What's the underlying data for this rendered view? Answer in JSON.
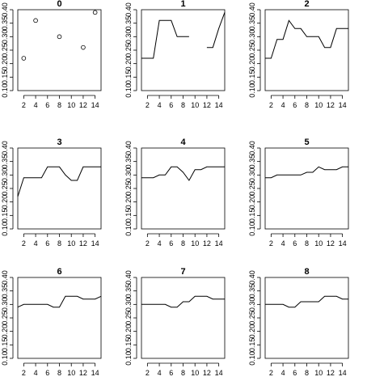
{
  "chart_data": [
    {
      "type": "scatter",
      "title": "0",
      "x": [
        2,
        4,
        6,
        8,
        10,
        12,
        14
      ],
      "y": [
        0.22,
        0.36,
        null,
        0.3,
        null,
        0.26,
        0.39
      ],
      "xlim": [
        1,
        15
      ],
      "ylim": [
        0.1,
        0.4
      ],
      "xticks": [
        2,
        4,
        6,
        8,
        10,
        12,
        14
      ],
      "yticks": [
        0.1,
        0.15,
        0.2,
        0.25,
        0.3,
        0.35,
        0.4
      ],
      "ytick_labels": [
        "0.10",
        "0.15",
        "0.20",
        "0.25",
        "0.30",
        "0.35",
        "0.40"
      ]
    },
    {
      "type": "line",
      "title": "1",
      "x": [
        1,
        2,
        3,
        4,
        5,
        6,
        7,
        8,
        9,
        10,
        11,
        12,
        13,
        14,
        15
      ],
      "y": [
        0.22,
        0.22,
        0.22,
        0.36,
        0.36,
        0.36,
        0.3,
        0.3,
        0.3,
        null,
        null,
        0.26,
        0.26,
        0.33,
        0.39
      ],
      "xlim": [
        1,
        15
      ],
      "ylim": [
        0.1,
        0.4
      ],
      "xticks": [
        2,
        4,
        6,
        8,
        10,
        12,
        14
      ],
      "yticks": [
        0.1,
        0.15,
        0.2,
        0.25,
        0.3,
        0.35,
        0.4
      ],
      "ytick_labels": [
        "0.10",
        "0.15",
        "0.20",
        "0.25",
        "0.30",
        "0.35",
        "0.40"
      ]
    },
    {
      "type": "line",
      "title": "2",
      "x": [
        1,
        2,
        3,
        4,
        5,
        6,
        7,
        8,
        9,
        10,
        11,
        12,
        13,
        14,
        15
      ],
      "y": [
        0.22,
        0.22,
        0.29,
        0.29,
        0.36,
        0.33,
        0.33,
        0.3,
        0.3,
        0.3,
        0.26,
        0.26,
        0.33,
        0.33,
        0.33
      ],
      "xlim": [
        1,
        15
      ],
      "ylim": [
        0.1,
        0.4
      ],
      "xticks": [
        2,
        4,
        6,
        8,
        10,
        12,
        14
      ],
      "yticks": [
        0.1,
        0.15,
        0.2,
        0.25,
        0.3,
        0.35,
        0.4
      ],
      "ytick_labels": [
        "0.10",
        "0.15",
        "0.20",
        "0.25",
        "0.30",
        "0.35",
        "0.40"
      ]
    },
    {
      "type": "line",
      "title": "3",
      "x": [
        1,
        2,
        3,
        4,
        5,
        6,
        7,
        8,
        9,
        10,
        11,
        12,
        13,
        14,
        15
      ],
      "y": [
        0.22,
        0.29,
        0.29,
        0.29,
        0.29,
        0.33,
        0.33,
        0.33,
        0.3,
        0.28,
        0.28,
        0.33,
        0.33,
        0.33,
        0.33
      ],
      "xlim": [
        1,
        15
      ],
      "ylim": [
        0.1,
        0.4
      ],
      "xticks": [
        2,
        4,
        6,
        8,
        10,
        12,
        14
      ],
      "yticks": [
        0.1,
        0.15,
        0.2,
        0.25,
        0.3,
        0.35,
        0.4
      ],
      "ytick_labels": [
        "0.10",
        "0.15",
        "0.20",
        "0.25",
        "0.30",
        "0.35",
        "0.40"
      ]
    },
    {
      "type": "line",
      "title": "4",
      "x": [
        1,
        2,
        3,
        4,
        5,
        6,
        7,
        8,
        9,
        10,
        11,
        12,
        13,
        14,
        15
      ],
      "y": [
        0.29,
        0.29,
        0.29,
        0.3,
        0.3,
        0.33,
        0.33,
        0.31,
        0.28,
        0.32,
        0.32,
        0.33,
        0.33,
        0.33,
        0.33
      ],
      "xlim": [
        1,
        15
      ],
      "ylim": [
        0.1,
        0.4
      ],
      "xticks": [
        2,
        4,
        6,
        8,
        10,
        12,
        14
      ],
      "yticks": [
        0.1,
        0.15,
        0.2,
        0.25,
        0.3,
        0.35,
        0.4
      ],
      "ytick_labels": [
        "0.10",
        "0.15",
        "0.20",
        "0.25",
        "0.30",
        "0.35",
        "0.40"
      ]
    },
    {
      "type": "line",
      "title": "5",
      "x": [
        1,
        2,
        3,
        4,
        5,
        6,
        7,
        8,
        9,
        10,
        11,
        12,
        13,
        14,
        15
      ],
      "y": [
        0.29,
        0.29,
        0.3,
        0.3,
        0.3,
        0.3,
        0.3,
        0.31,
        0.31,
        0.33,
        0.32,
        0.32,
        0.32,
        0.33,
        0.33
      ],
      "xlim": [
        1,
        15
      ],
      "ylim": [
        0.1,
        0.4
      ],
      "xticks": [
        2,
        4,
        6,
        8,
        10,
        12,
        14
      ],
      "yticks": [
        0.1,
        0.15,
        0.2,
        0.25,
        0.3,
        0.35,
        0.4
      ],
      "ytick_labels": [
        "0.10",
        "0.15",
        "0.20",
        "0.25",
        "0.30",
        "0.35",
        "0.40"
      ]
    },
    {
      "type": "line",
      "title": "6",
      "x": [
        1,
        2,
        3,
        4,
        5,
        6,
        7,
        8,
        9,
        10,
        11,
        12,
        13,
        14,
        15
      ],
      "y": [
        0.29,
        0.3,
        0.3,
        0.3,
        0.3,
        0.3,
        0.29,
        0.29,
        0.33,
        0.33,
        0.33,
        0.32,
        0.32,
        0.32,
        0.33
      ],
      "xlim": [
        1,
        15
      ],
      "ylim": [
        0.1,
        0.4
      ],
      "xticks": [
        2,
        4,
        6,
        8,
        10,
        12,
        14
      ],
      "yticks": [
        0.1,
        0.15,
        0.2,
        0.25,
        0.3,
        0.35,
        0.4
      ],
      "ytick_labels": [
        "0.10",
        "0.15",
        "0.20",
        "0.25",
        "0.30",
        "0.35",
        "0.40"
      ]
    },
    {
      "type": "line",
      "title": "7",
      "x": [
        1,
        2,
        3,
        4,
        5,
        6,
        7,
        8,
        9,
        10,
        11,
        12,
        13,
        14,
        15
      ],
      "y": [
        0.3,
        0.3,
        0.3,
        0.3,
        0.3,
        0.29,
        0.29,
        0.31,
        0.31,
        0.33,
        0.33,
        0.33,
        0.32,
        0.32,
        0.32
      ],
      "xlim": [
        1,
        15
      ],
      "ylim": [
        0.1,
        0.4
      ],
      "xticks": [
        2,
        4,
        6,
        8,
        10,
        12,
        14
      ],
      "yticks": [
        0.1,
        0.15,
        0.2,
        0.25,
        0.3,
        0.35,
        0.4
      ],
      "ytick_labels": [
        "0.10",
        "0.15",
        "0.20",
        "0.25",
        "0.30",
        "0.35",
        "0.40"
      ]
    },
    {
      "type": "line",
      "title": "8",
      "x": [
        1,
        2,
        3,
        4,
        5,
        6,
        7,
        8,
        9,
        10,
        11,
        12,
        13,
        14,
        15
      ],
      "y": [
        0.3,
        0.3,
        0.3,
        0.3,
        0.29,
        0.29,
        0.31,
        0.31,
        0.31,
        0.31,
        0.33,
        0.33,
        0.33,
        0.32,
        0.32
      ],
      "xlim": [
        1,
        15
      ],
      "ylim": [
        0.1,
        0.4
      ],
      "xticks": [
        2,
        4,
        6,
        8,
        10,
        12,
        14
      ],
      "yticks": [
        0.1,
        0.15,
        0.2,
        0.25,
        0.3,
        0.35,
        0.4
      ],
      "ytick_labels": [
        "0.10",
        "0.15",
        "0.20",
        "0.25",
        "0.30",
        "0.35",
        "0.40"
      ]
    }
  ]
}
